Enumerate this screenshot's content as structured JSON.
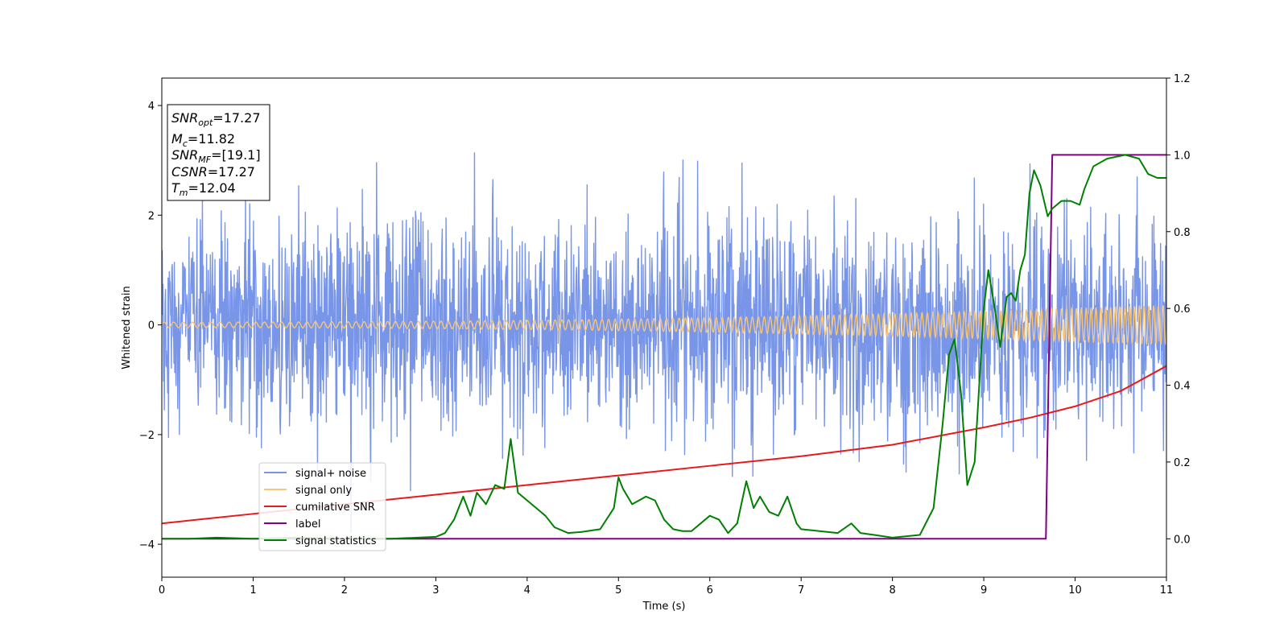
{
  "chart_data": {
    "type": "line",
    "xlabel": "Time (s)",
    "ylabel": "Whitened strain",
    "xlim": [
      0,
      11
    ],
    "ylim": [
      -4.6,
      4.5
    ],
    "y2lim": [
      -0.1,
      1.2
    ],
    "x_ticks": [
      0,
      1,
      2,
      3,
      4,
      5,
      6,
      7,
      8,
      9,
      10,
      11
    ],
    "y_ticks": [
      -4,
      -2,
      0,
      2,
      4
    ],
    "y_tick_labels": [
      "−4",
      "−2",
      "0",
      "2",
      "4"
    ],
    "y2_ticks": [
      0.0,
      0.2,
      0.4,
      0.6,
      0.8,
      1.0,
      1.2
    ],
    "y2_tick_labels": [
      "0.0",
      "0.2",
      "0.4",
      "0.6",
      "0.8",
      "1.0",
      "1.2"
    ],
    "grid": false,
    "legend_position": "bottom-left",
    "annotation": {
      "lines": [
        {
          "main": "SNR",
          "sub": "opt",
          "value": "=17.27"
        },
        {
          "main": "M",
          "sub": "c",
          "value": "=11.82"
        },
        {
          "main": "SNR",
          "sub": "MF",
          "value": "=[19.1]"
        },
        {
          "main": "CSNR",
          "sub": "",
          "value": "=17.27"
        },
        {
          "main": "T",
          "sub": "m",
          "value": "=12.04"
        }
      ]
    },
    "series": [
      {
        "name": "signal+ noise",
        "color": "#7895e8",
        "axis": "left",
        "kind": "noise",
        "std": 0.95,
        "peak_max": 4.05,
        "peak_min": -4.15
      },
      {
        "name": "signal only",
        "color": "#f5c57a",
        "axis": "left",
        "kind": "chirp",
        "amplitude_start": 0.05,
        "amplitude_end": 0.36
      },
      {
        "name": "cumilative SNR",
        "color": "#e8191b",
        "axis": "right",
        "x": [
          0,
          1,
          2,
          3,
          4,
          5,
          6,
          7,
          8,
          9,
          9.5,
          10,
          10.5,
          11
        ],
        "y": [
          0.04,
          0.065,
          0.09,
          0.115,
          0.14,
          0.165,
          0.19,
          0.215,
          0.245,
          0.29,
          0.315,
          0.345,
          0.385,
          0.45
        ]
      },
      {
        "name": "label",
        "color": "#800080",
        "axis": "right",
        "x": [
          0,
          9.68,
          9.75,
          11
        ],
        "y": [
          0,
          0,
          1,
          1
        ]
      },
      {
        "name": "signal statistics",
        "color": "#008000",
        "axis": "right",
        "x": [
          0,
          0.3,
          0.6,
          1.0,
          1.5,
          2.0,
          2.5,
          2.8,
          3.0,
          3.1,
          3.2,
          3.3,
          3.38,
          3.45,
          3.55,
          3.65,
          3.75,
          3.82,
          3.9,
          4.0,
          4.1,
          4.2,
          4.3,
          4.45,
          4.6,
          4.8,
          4.95,
          5.0,
          5.05,
          5.15,
          5.3,
          5.4,
          5.5,
          5.6,
          5.7,
          5.8,
          6.0,
          6.1,
          6.2,
          6.3,
          6.4,
          6.48,
          6.55,
          6.65,
          6.75,
          6.85,
          6.95,
          7.0,
          7.2,
          7.4,
          7.55,
          7.65,
          7.8,
          8.0,
          8.3,
          8.45,
          8.55,
          8.62,
          8.68,
          8.75,
          8.82,
          8.9,
          9.0,
          9.05,
          9.12,
          9.18,
          9.25,
          9.3,
          9.35,
          9.4,
          9.45,
          9.5,
          9.55,
          9.62,
          9.7,
          9.75,
          9.85,
          9.95,
          10.05,
          10.1,
          10.2,
          10.35,
          10.55,
          10.7,
          10.8,
          10.9,
          11.0
        ],
        "y": [
          0.0,
          0.0,
          0.003,
          0.0,
          0.003,
          0.0,
          0.0,
          0.003,
          0.005,
          0.015,
          0.05,
          0.11,
          0.06,
          0.12,
          0.09,
          0.14,
          0.13,
          0.26,
          0.12,
          0.1,
          0.08,
          0.06,
          0.03,
          0.015,
          0.018,
          0.025,
          0.08,
          0.16,
          0.13,
          0.09,
          0.11,
          0.1,
          0.05,
          0.025,
          0.02,
          0.02,
          0.06,
          0.05,
          0.015,
          0.04,
          0.15,
          0.08,
          0.11,
          0.07,
          0.06,
          0.11,
          0.04,
          0.025,
          0.02,
          0.015,
          0.04,
          0.015,
          0.01,
          0.003,
          0.01,
          0.08,
          0.3,
          0.48,
          0.52,
          0.38,
          0.14,
          0.2,
          0.6,
          0.7,
          0.6,
          0.5,
          0.63,
          0.64,
          0.62,
          0.7,
          0.74,
          0.9,
          0.96,
          0.92,
          0.84,
          0.86,
          0.88,
          0.88,
          0.87,
          0.91,
          0.97,
          0.99,
          1.0,
          0.99,
          0.95,
          0.94,
          0.94
        ]
      }
    ]
  }
}
